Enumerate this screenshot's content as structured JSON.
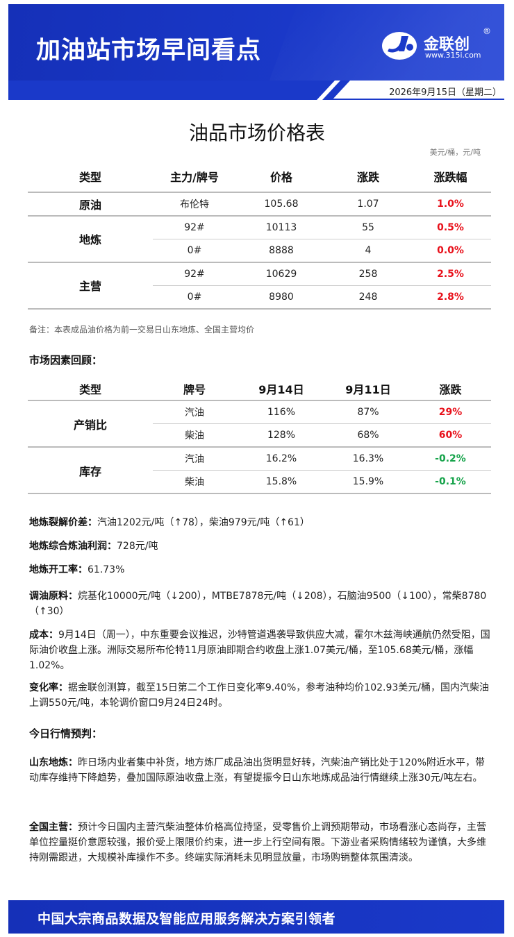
{
  "header": {
    "title": "加油站市场早间看点",
    "brand_name": "金联创",
    "brand_reg": "®",
    "brand_url": "www.315i.com",
    "date": "2026年9月15日（星期二）"
  },
  "price_table": {
    "title": "油品市场价格表",
    "unit": "美元/桶，元/吨",
    "headers": [
      "类型",
      "主力/牌号",
      "价格",
      "涨跌",
      "涨跌幅"
    ],
    "groups": [
      {
        "type": "原油",
        "rows": [
          {
            "brand": "布伦特",
            "price": "105.68",
            "change": "1.07",
            "pct": "1.0%"
          }
        ]
      },
      {
        "type": "地炼",
        "rows": [
          {
            "brand": "92#",
            "price": "10113",
            "change": "55",
            "pct": "0.5%"
          },
          {
            "brand": "0#",
            "price": "8888",
            "change": "4",
            "pct": "0.0%"
          }
        ]
      },
      {
        "type": "主营",
        "rows": [
          {
            "brand": "92#",
            "price": "10629",
            "change": "258",
            "pct": "2.5%"
          },
          {
            "brand": "0#",
            "price": "8980",
            "change": "248",
            "pct": "2.8%"
          }
        ]
      }
    ],
    "note": "备注：本表成品油价格为前一交易日山东地炼、全国主营均价"
  },
  "factors": {
    "title": "市场因素回顾：",
    "headers": [
      "类型",
      "牌号",
      "9月14日",
      "9月11日",
      "涨跌"
    ],
    "groups": [
      {
        "type": "产销比",
        "rows": [
          {
            "brand": "汽油",
            "d1": "116%",
            "d2": "87%",
            "change": "29%",
            "dir": "up"
          },
          {
            "brand": "柴油",
            "d1": "128%",
            "d2": "68%",
            "change": "60%",
            "dir": "up"
          }
        ]
      },
      {
        "type": "库存",
        "rows": [
          {
            "brand": "汽油",
            "d1": "16.2%",
            "d2": "16.3%",
            "change": "-0.2%",
            "dir": "down"
          },
          {
            "brand": "柴油",
            "d1": "15.8%",
            "d2": "15.9%",
            "change": "-0.1%",
            "dir": "down"
          }
        ]
      }
    ]
  },
  "items": {
    "crack": {
      "label": "地炼裂解价差：",
      "text": "汽油1202元/吨（↑78），柴油979元/吨（↑61）"
    },
    "profit": {
      "label": "地炼综合炼油利润：",
      "text": "728元/吨"
    },
    "rate": {
      "label": "地炼开工率：",
      "text": "61.73%"
    },
    "material": {
      "label": "调油原料：",
      "text": "烷基化10000元/吨（↓200），MTBE7878元/吨（↓208），石脑油9500（↓100），常柴8780（↑30）"
    },
    "cost": {
      "label": "成本：",
      "text": "9月14日（周一），中东重要会议推迟，沙特管道遇袭导致供应大减，霍尔木兹海峡通航仍然受阻，国际油价收盘上涨。洲际交易所布伦特11月原油即期合约收盘上涨1.07美元/桶，至105.68美元/桶，涨幅1.02%。"
    },
    "change": {
      "label": "变化率：",
      "text": "据金联创测算，截至15日第二个工作日变化率9.40%，参考油种均价102.93美元/桶，国内汽柴油上调550元/吨，本轮调价窗口9月24日24时。"
    }
  },
  "forecast": {
    "title": "今日行情预判：",
    "shandong": {
      "label": "山东地炼：",
      "text": "昨日场内业者集中补货，地方炼厂成品油出货明显好转，汽柴油产销比处于120%附近水平，带动库存维持下降趋势，叠加国际原油收盘上涨，有望提振今日山东地炼成品油行情继续上涨30元/吨左右。"
    },
    "national": {
      "label": "全国主营：",
      "text": "预计今日国内主营汽柴油整体价格高位持坚，受零售价上调预期带动，市场看涨心态尚存，主营单位控量挺价意愿较强，报价受上限限价约束，进一步上行空间有限。下游业者采购情绪较为谨慎，大多维持刚需跟进，大规模补库操作不多。终端实际消耗未见明显放量，市场购销整体氛围清淡。"
    }
  },
  "footer": {
    "text": "中国大宗商品数据及智能应用服务解决方案引领者"
  },
  "colors": {
    "banner": "#1a39c9",
    "up": "#e8101a",
    "down": "#16a34a"
  }
}
